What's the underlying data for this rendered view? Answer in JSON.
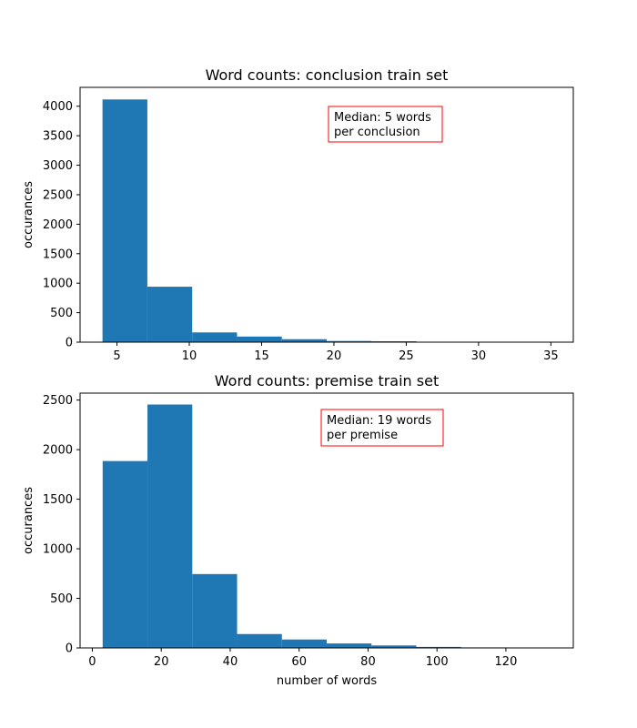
{
  "chart_data": [
    {
      "type": "bar",
      "title": "Word counts: conclusion train set",
      "xlabel": "",
      "ylabel": "occurances",
      "xlim": [
        2.45,
        36.55
      ],
      "ylim": [
        0,
        4320
      ],
      "x_ticks": [
        5,
        10,
        15,
        20,
        25,
        30,
        35
      ],
      "y_ticks": [
        0,
        500,
        1000,
        1500,
        2000,
        2500,
        3000,
        3500,
        4000
      ],
      "bin_edges": [
        4,
        7.1,
        10.2,
        13.3,
        16.4,
        19.5,
        22.6,
        25.7,
        28.8,
        31.9,
        35
      ],
      "values": [
        4115,
        940,
        165,
        95,
        50,
        20,
        15,
        5,
        3,
        2
      ],
      "annotation": [
        "Median: 5 words",
        "per conclusion"
      ],
      "grid": false,
      "colors": {
        "bar": "#1f77b4",
        "annotation_border": "#ff0000"
      }
    },
    {
      "type": "bar",
      "title": "Word counts: premise train set",
      "xlabel": "number of words",
      "ylabel": "occurances",
      "xlim": [
        -3.55,
        139.55
      ],
      "ylim": [
        0,
        2570
      ],
      "x_ticks": [
        0,
        20,
        40,
        60,
        80,
        100,
        120
      ],
      "y_ticks": [
        0,
        500,
        1000,
        1500,
        2000,
        2500
      ],
      "bin_edges": [
        3,
        16,
        29,
        42,
        55,
        68,
        81,
        94,
        107,
        120,
        133
      ],
      "values": [
        1885,
        2455,
        745,
        140,
        85,
        45,
        25,
        10,
        5,
        2
      ],
      "annotation": [
        "Median: 19 words",
        "per premise"
      ],
      "grid": false,
      "colors": {
        "bar": "#1f77b4",
        "annotation_border": "#ff0000"
      }
    }
  ]
}
